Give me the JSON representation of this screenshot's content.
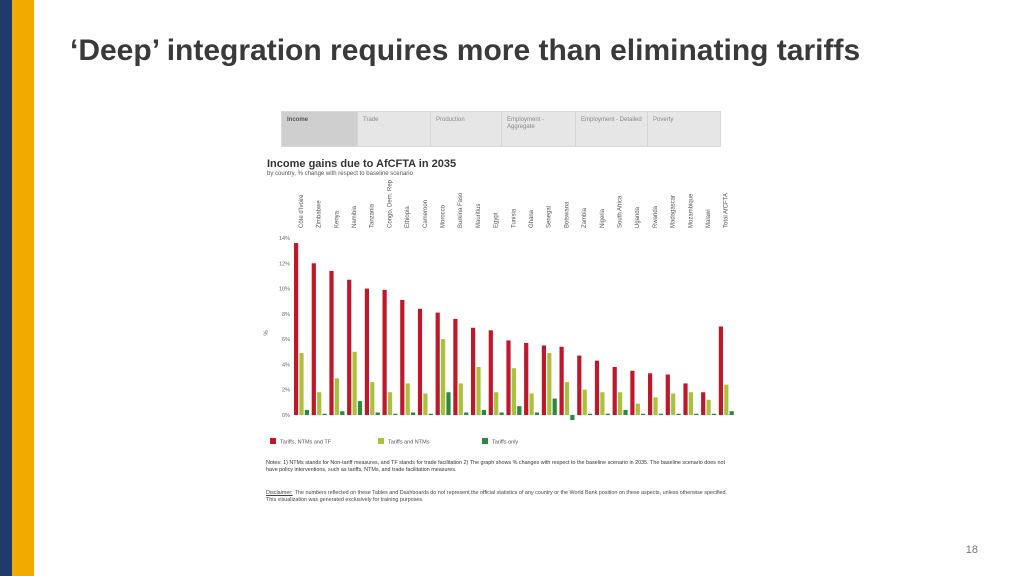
{
  "slide": {
    "title": "‘Deep’ integration requires more than eliminating tariffs",
    "page_number": "18",
    "colors": {
      "navy": "#1f3a6b",
      "gold": "#f2a900"
    }
  },
  "tabs": [
    {
      "label": "Income",
      "active": true
    },
    {
      "label": "Trade",
      "active": false
    },
    {
      "label": "Production",
      "active": false
    },
    {
      "label": "Employment - Aggregate",
      "active": false
    },
    {
      "label": "Employment - Detailed",
      "active": false
    },
    {
      "label": "Poverty",
      "active": false
    }
  ],
  "chart_data": {
    "type": "bar",
    "title": "Income gains due to AfCFTA in 2035",
    "subtitle": "by country, % change with respect to baseline scenario",
    "xlabel": "",
    "ylabel": "%",
    "ylim": [
      0,
      14
    ],
    "yticks": [
      0,
      2,
      4,
      6,
      8,
      10,
      12,
      14
    ],
    "ytick_labels": [
      "0%",
      "2%",
      "4%",
      "6%",
      "8%",
      "10%",
      "12%",
      "14%"
    ],
    "legend_position": "bottom",
    "categories": [
      "Côte d'Ivoire",
      "Zimbabwe",
      "Kenya",
      "Namibia",
      "Tanzania",
      "Congo, Dem. Rep.",
      "Ethiopia",
      "Cameroon",
      "Morocco",
      "Burkina Faso",
      "Mauritius",
      "Egypt",
      "Tunisia",
      "Ghana",
      "Senegal",
      "Botswana",
      "Zambia",
      "Nigeria",
      "South Africa",
      "Uganda",
      "Rwanda",
      "Madagascar",
      "Mozambique",
      "Malawi",
      "Total AfCFTA"
    ],
    "series": [
      {
        "name": "Tariffs, NTMs and TF",
        "color": "#c0182b",
        "values": [
          13.6,
          12.0,
          11.4,
          10.7,
          10.0,
          9.9,
          9.1,
          8.4,
          8.1,
          7.6,
          6.9,
          6.7,
          5.9,
          5.7,
          5.5,
          5.4,
          4.7,
          4.3,
          3.8,
          3.5,
          3.3,
          3.2,
          2.5,
          1.8,
          7.0
        ]
      },
      {
        "name": "Tariffs and NTMs",
        "color": "#a8c23a",
        "values": [
          4.9,
          1.8,
          2.9,
          5.0,
          2.6,
          1.8,
          2.5,
          1.7,
          6.0,
          2.5,
          3.8,
          1.8,
          3.7,
          1.7,
          4.9,
          2.6,
          2.0,
          1.8,
          1.8,
          0.9,
          1.4,
          1.7,
          1.8,
          1.2,
          2.4
        ]
      },
      {
        "name": "Tariffs only",
        "color": "#2b8a3e",
        "values": [
          0.4,
          0.1,
          0.3,
          1.1,
          0.2,
          0.1,
          0.2,
          0.1,
          1.8,
          0.2,
          0.4,
          0.2,
          0.7,
          0.2,
          1.3,
          -0.4,
          0.1,
          0.1,
          0.4,
          0.1,
          0.1,
          0.1,
          0.1,
          0.1,
          0.3
        ]
      }
    ]
  },
  "notes": "Notes: 1) NTMs stands for Non-tariff measures, and TF stands for trade facilitation  2) The graph shows % changes with respect to the baseline scenario in 2035.  The baseline scenario does not have policy interventions, such as tariffs, NTMs, and trade facilitation measures.",
  "disclaimer": {
    "label": "Disclaimer:",
    "text": "The numbers reflected on these Tables and Dashboards do not represent the official statistics of any country or the World Bank position on these aspects, unless otherwise specified. This visualization was generated exclusively for training purposes."
  }
}
